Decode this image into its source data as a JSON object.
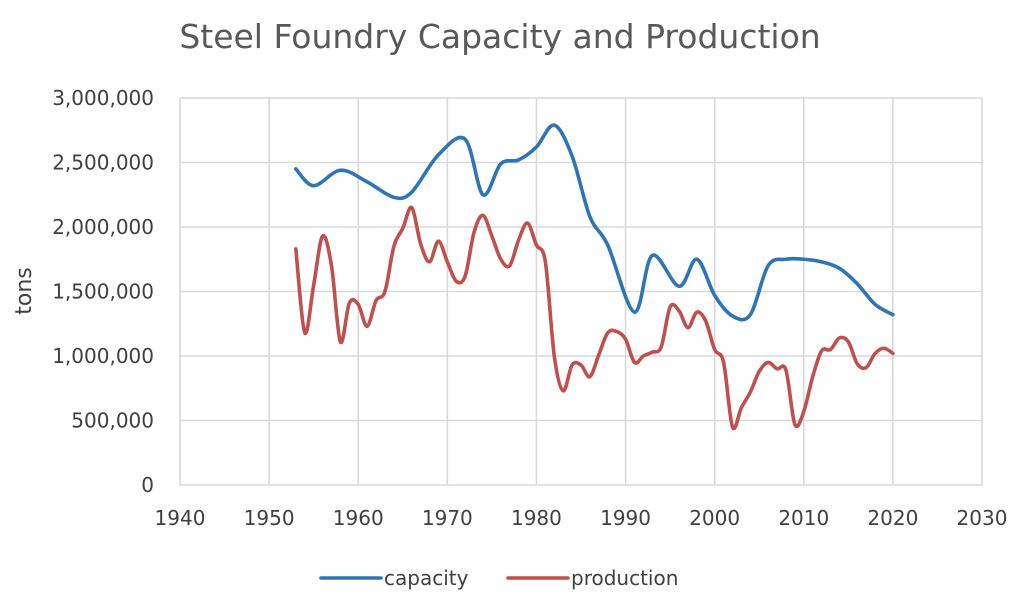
{
  "chart_data": {
    "type": "line",
    "title": "Steel Foundry Capacity and Production",
    "xlabel": "",
    "ylabel": "tons",
    "xlim": [
      1940,
      2030
    ],
    "ylim": [
      0,
      3000000
    ],
    "x_ticks": [
      1940,
      1950,
      1960,
      1970,
      1980,
      1990,
      2000,
      2010,
      2020,
      2030
    ],
    "x_tick_labels": [
      "1940",
      "1950",
      "1960",
      "1970",
      "1980",
      "1990",
      "2000",
      "2010",
      "2020",
      "2030"
    ],
    "y_ticks": [
      0,
      500000,
      1000000,
      1500000,
      2000000,
      2500000,
      3000000
    ],
    "y_tick_labels": [
      "0",
      "500,000",
      "1,000,000",
      "1,500,000",
      "2,000,000",
      "2,500,000",
      "3,000,000"
    ],
    "grid": true,
    "legend_position": "bottom",
    "series": [
      {
        "name": "capacity",
        "color": "#2e75b6",
        "x": [
          1953,
          1955,
          1958,
          1961,
          1964,
          1966,
          1969,
          1972,
          1974,
          1976,
          1978,
          1980,
          1982,
          1984,
          1986,
          1988,
          1991,
          1993,
          1996,
          1998,
          2000,
          2002,
          2004,
          2006,
          2008,
          2010,
          2012,
          2014,
          2016,
          2018,
          2020
        ],
        "values": [
          2450000,
          2320000,
          2440000,
          2350000,
          2230000,
          2270000,
          2560000,
          2680000,
          2250000,
          2490000,
          2520000,
          2620000,
          2790000,
          2550000,
          2080000,
          1860000,
          1340000,
          1780000,
          1540000,
          1750000,
          1470000,
          1310000,
          1320000,
          1700000,
          1750000,
          1750000,
          1730000,
          1680000,
          1560000,
          1400000,
          1320000
        ]
      },
      {
        "name": "production",
        "color": "#c0504d",
        "x": [
          1953,
          1954,
          1955,
          1956,
          1957,
          1958,
          1959,
          1960,
          1961,
          1962,
          1963,
          1964,
          1965,
          1966,
          1967,
          1968,
          1969,
          1970,
          1971,
          1972,
          1973,
          1974,
          1975,
          1976,
          1977,
          1978,
          1979,
          1980,
          1981,
          1982,
          1983,
          1984,
          1985,
          1986,
          1987,
          1988,
          1989,
          1990,
          1991,
          1992,
          1993,
          1994,
          1995,
          1996,
          1997,
          1998,
          1999,
          2000,
          2001,
          2002,
          2003,
          2004,
          2005,
          2006,
          2007,
          2008,
          2009,
          2010,
          2011,
          2012,
          2013,
          2014,
          2015,
          2016,
          2017,
          2018,
          2019,
          2020
        ],
        "values": [
          1830000,
          1180000,
          1550000,
          1930000,
          1700000,
          1110000,
          1410000,
          1400000,
          1230000,
          1430000,
          1500000,
          1850000,
          1990000,
          2150000,
          1870000,
          1730000,
          1890000,
          1730000,
          1580000,
          1620000,
          1960000,
          2090000,
          1930000,
          1750000,
          1700000,
          1900000,
          2030000,
          1860000,
          1730000,
          1000000,
          730000,
          930000,
          930000,
          840000,
          1010000,
          1180000,
          1190000,
          1130000,
          950000,
          1000000,
          1030000,
          1070000,
          1380000,
          1350000,
          1220000,
          1340000,
          1270000,
          1050000,
          950000,
          450000,
          600000,
          720000,
          880000,
          950000,
          900000,
          890000,
          470000,
          570000,
          840000,
          1040000,
          1050000,
          1140000,
          1110000,
          940000,
          910000,
          1020000,
          1060000,
          1020000
        ]
      }
    ]
  }
}
